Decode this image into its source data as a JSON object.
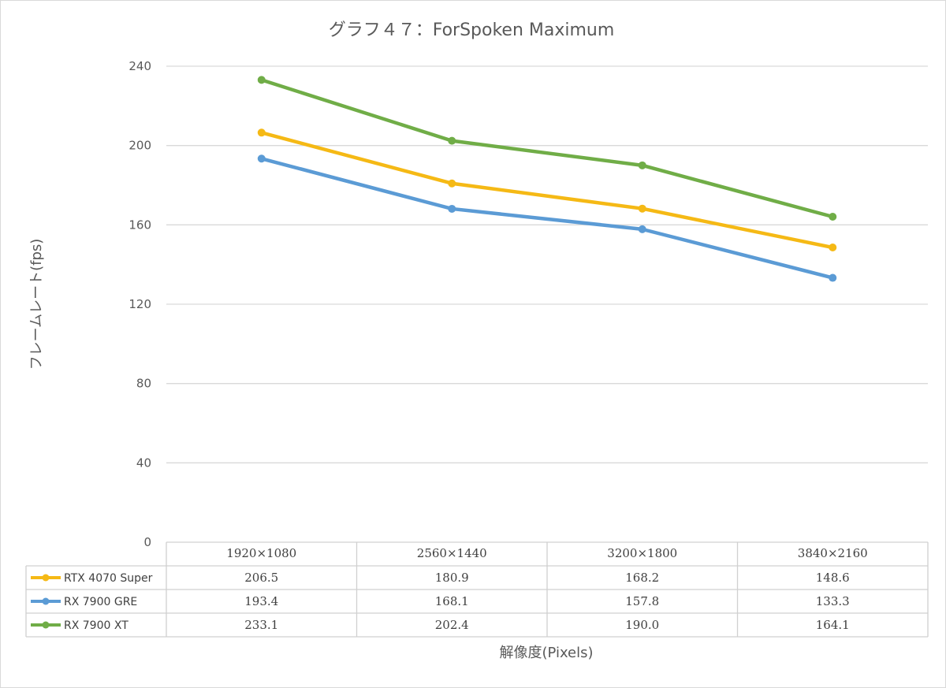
{
  "chart_data": {
    "type": "line",
    "title": "グラフ４７：ForSpoken Maximum",
    "xlabel": "解像度(Pixels)",
    "ylabel": "フレームレート(fps)",
    "ylim": [
      0,
      240
    ],
    "yticks": [
      "0",
      "40",
      "80",
      "120",
      "160",
      "200",
      "240"
    ],
    "grid": true,
    "legend": "data-table",
    "categories": [
      "1920×1080",
      "2560×1440",
      "3200×1800",
      "3840×2160"
    ],
    "series": [
      {
        "name": "RTX 4070 Super",
        "color": "#f5b915",
        "values": [
          206.5,
          180.9,
          168.2,
          148.6
        ],
        "labels": [
          "206.5",
          "180.9",
          "168.2",
          "148.6"
        ]
      },
      {
        "name": "RX 7900 GRE",
        "color": "#5b9bd5",
        "values": [
          193.4,
          168.1,
          157.8,
          133.3
        ],
        "labels": [
          "193.4",
          "168.1",
          "157.8",
          "133.3"
        ]
      },
      {
        "name": "RX 7900 XT",
        "color": "#70ad47",
        "values": [
          233.1,
          202.4,
          190.0,
          164.1
        ],
        "labels": [
          "233.1",
          "202.4",
          "190.0",
          "164.1"
        ]
      }
    ]
  }
}
